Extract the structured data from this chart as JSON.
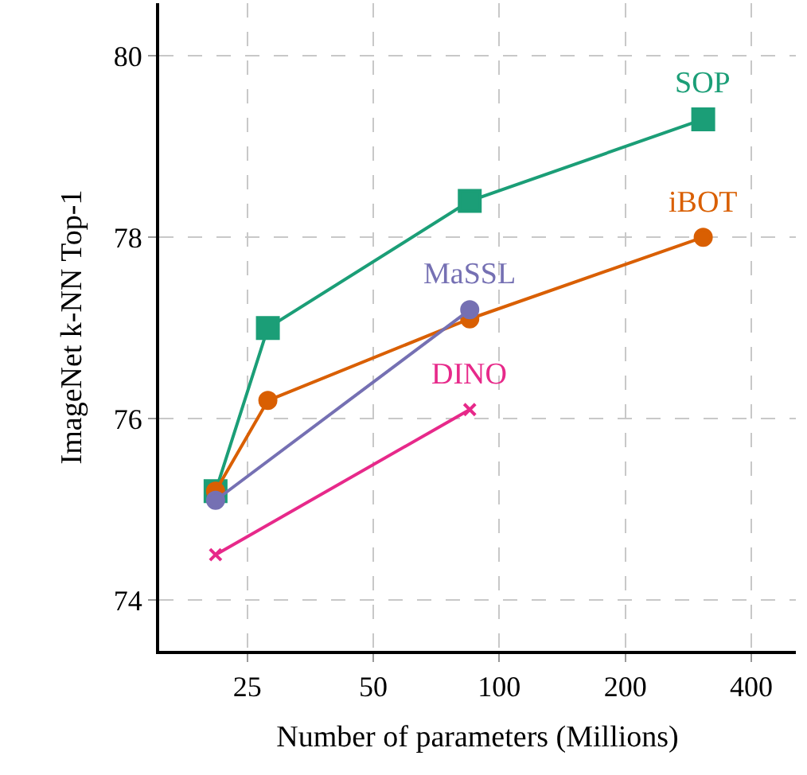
{
  "chart_data": {
    "type": "line",
    "xlabel": "Number of parameters (Millions)",
    "ylabel": "ImageNet k-NN Top-1",
    "log": "x",
    "grid": true,
    "legend": false,
    "xlim": [
      15.4,
      511
    ],
    "xticks": [
      25,
      50,
      100,
      200,
      400
    ],
    "ylim": [
      73.44,
      80.58
    ],
    "yticks": [
      74,
      76,
      78,
      80
    ],
    "series": [
      {
        "name": "SOP",
        "color": "#1b9e77",
        "marker": "square",
        "x": [
          21,
          28,
          85,
          307
        ],
        "values": [
          75.2,
          77.0,
          78.4,
          79.3
        ]
      },
      {
        "name": "iBOT",
        "color": "#d95f02",
        "marker": "circle",
        "x": [
          21,
          28,
          85,
          307
        ],
        "values": [
          75.2,
          76.2,
          77.1,
          78.0
        ]
      },
      {
        "name": "MaSSL",
        "color": "#7570b3",
        "marker": "circle",
        "x": [
          21,
          85
        ],
        "values": [
          75.1,
          77.2
        ]
      },
      {
        "name": "DINO",
        "color": "#e7298a",
        "marker": "cross",
        "x": [
          21,
          85
        ],
        "values": [
          74.5,
          76.1
        ]
      }
    ]
  }
}
